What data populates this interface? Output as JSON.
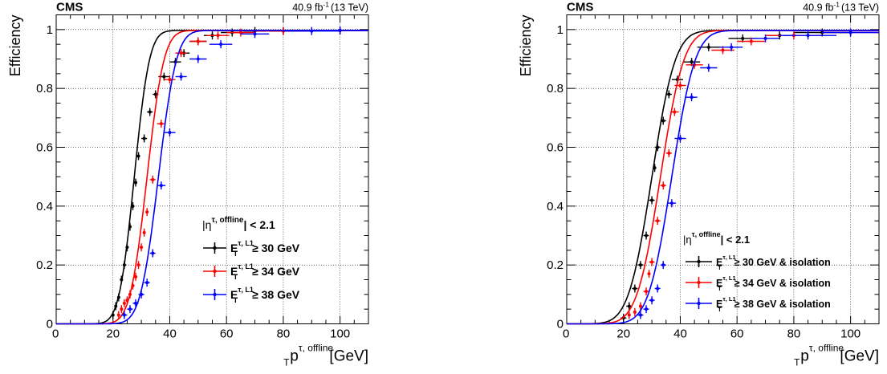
{
  "chart_data": [
    {
      "type": "scatter",
      "experiment": "CMS",
      "lumi_main": "40.9 fb",
      "lumi_exp": "-1",
      "energy": "(13 TeV)",
      "ylabel": "Efficiency",
      "xlabel": {
        "main": "p",
        "sub": "T",
        "sup": "τ, offline",
        "unit": "[GeV]"
      },
      "xlim": [
        0,
        110
      ],
      "ylim": [
        0,
        1.05
      ],
      "xticks": [
        "0",
        "20",
        "40",
        "60",
        "80",
        "100"
      ],
      "yticks": [
        "0",
        "0.2",
        "0.4",
        "0.6",
        "0.8",
        "1"
      ],
      "grid": true,
      "legend": {
        "position": "right-middle",
        "header": {
          "main": "|η",
          "sup": "τ, offline",
          "tail": "| < 2.1"
        },
        "entries": [
          {
            "main": "E",
            "sub": "T",
            "sup": "τ, L1",
            "tail": " ≥ 30 GeV"
          },
          {
            "main": "E",
            "sub": "T",
            "sup": "τ, L1",
            "tail": " ≥ 34 GeV"
          },
          {
            "main": "E",
            "sub": "T",
            "sup": "τ, L1",
            "tail": " ≥ 38 GeV"
          }
        ]
      },
      "series": [
        {
          "color": "#000000",
          "fit": {
            "mu": 27.5,
            "sigma": 4.2
          },
          "points": [
            [
              20,
              0.03
            ],
            [
              21,
              0.06
            ],
            [
              22,
              0.09
            ],
            [
              23,
              0.15
            ],
            [
              24,
              0.2
            ],
            [
              25,
              0.26
            ],
            [
              26,
              0.33
            ],
            [
              27,
              0.4
            ],
            [
              28,
              0.48
            ],
            [
              29,
              0.57
            ],
            [
              31,
              0.63
            ],
            [
              33,
              0.72
            ],
            [
              35,
              0.78
            ],
            [
              38,
              0.84
            ],
            [
              42,
              0.89
            ],
            [
              45,
              0.92
            ],
            [
              50,
              0.96
            ],
            [
              55,
              0.98
            ],
            [
              62,
              0.99
            ],
            [
              70,
              0.995
            ],
            [
              80,
              0.995
            ],
            [
              100,
              0.997
            ]
          ],
          "xerr": [
            0.5,
            0.5,
            0.5,
            0.5,
            0.5,
            0.5,
            0.5,
            0.5,
            0.5,
            0.5,
            1,
            1,
            1,
            2,
            2,
            2,
            3,
            3,
            4,
            4,
            5,
            10
          ]
        },
        {
          "color": "#ff0000",
          "fit": {
            "mu": 32.0,
            "sigma": 4.7
          },
          "points": [
            [
              22,
              0.03
            ],
            [
              23,
              0.05
            ],
            [
              24,
              0.07
            ],
            [
              25,
              0.08
            ],
            [
              26,
              0.1
            ],
            [
              27,
              0.13
            ],
            [
              28,
              0.16
            ],
            [
              29,
              0.2
            ],
            [
              30,
              0.26
            ],
            [
              31,
              0.31
            ],
            [
              32,
              0.38
            ],
            [
              34,
              0.49
            ],
            [
              37,
              0.68
            ],
            [
              40,
              0.83
            ],
            [
              44,
              0.92
            ],
            [
              50,
              0.96
            ],
            [
              57,
              0.98
            ],
            [
              65,
              0.99
            ],
            [
              80,
              0.995
            ],
            [
              100,
              0.997
            ]
          ],
          "xerr": [
            0.5,
            0.5,
            0.5,
            0.5,
            0.5,
            0.5,
            0.5,
            0.5,
            0.5,
            0.5,
            0.5,
            1,
            1.5,
            2,
            2,
            3,
            4,
            5,
            10,
            10
          ]
        },
        {
          "color": "#0000ff",
          "fit": {
            "mu": 36.0,
            "sigma": 5.0
          },
          "points": [
            [
              24,
              0.03
            ],
            [
              26,
              0.05
            ],
            [
              28,
              0.07
            ],
            [
              30,
              0.1
            ],
            [
              32,
              0.14
            ],
            [
              34,
              0.24
            ],
            [
              37,
              0.47
            ],
            [
              40,
              0.65
            ],
            [
              44,
              0.84
            ],
            [
              50,
              0.9
            ],
            [
              58,
              0.95
            ],
            [
              70,
              0.985
            ],
            [
              90,
              0.995
            ],
            [
              100,
              0.997
            ]
          ],
          "xerr": [
            1,
            1,
            1,
            1,
            1,
            1,
            1.5,
            2,
            2,
            3,
            4,
            5,
            10,
            10
          ]
        }
      ]
    },
    {
      "type": "scatter",
      "experiment": "CMS",
      "lumi_main": "40.9 fb",
      "lumi_exp": "-1",
      "energy": "(13 TeV)",
      "ylabel": "Efficiency",
      "xlabel": {
        "main": "p",
        "sub": "T",
        "sup": "τ, offline",
        "unit": "[GeV]"
      },
      "xlim": [
        0,
        110
      ],
      "ylim": [
        0,
        1.05
      ],
      "xticks": [
        "0",
        "20",
        "40",
        "60",
        "80",
        "100"
      ],
      "yticks": [
        "0",
        "0.2",
        "0.4",
        "0.6",
        "0.8",
        "1"
      ],
      "grid": true,
      "legend": {
        "position": "bottom-right",
        "header": {
          "main": "|η",
          "sup": "τ, offline",
          "tail": "| < 2.1"
        },
        "entries": [
          {
            "main": "E",
            "sub": "T",
            "sup": "τ, L1",
            "tail": " ≥ 30 GeV & isolation"
          },
          {
            "main": "E",
            "sub": "T",
            "sup": "τ, L1",
            "tail": " ≥ 34 GeV & isolation"
          },
          {
            "main": "E",
            "sub": "T",
            "sup": "τ, L1",
            "tail": " ≥ 38 GeV & isolation"
          }
        ]
      },
      "series": [
        {
          "color": "#000000",
          "fit": {
            "mu": 30.0,
            "sigma": 6.5
          },
          "points": [
            [
              20,
              0.02
            ],
            [
              22,
              0.06
            ],
            [
              24,
              0.12
            ],
            [
              26,
              0.2
            ],
            [
              28,
              0.3
            ],
            [
              30,
              0.42
            ],
            [
              31,
              0.53
            ],
            [
              32,
              0.6
            ],
            [
              34,
              0.69
            ],
            [
              36,
              0.78
            ],
            [
              39,
              0.83
            ],
            [
              44,
              0.89
            ],
            [
              50,
              0.94
            ],
            [
              62,
              0.97
            ],
            [
              75,
              0.98
            ],
            [
              90,
              0.99
            ]
          ],
          "xerr": [
            1,
            1,
            1,
            1,
            1,
            1,
            0.5,
            1,
            1,
            1,
            2,
            3,
            4,
            5,
            5,
            10
          ]
        },
        {
          "color": "#ff0000",
          "fit": {
            "mu": 33.0,
            "sigma": 6.5
          },
          "points": [
            [
              22,
              0.03
            ],
            [
              24,
              0.04
            ],
            [
              26,
              0.06
            ],
            [
              28,
              0.11
            ],
            [
              29,
              0.17
            ],
            [
              30,
              0.21
            ],
            [
              32,
              0.35
            ],
            [
              34,
              0.47
            ],
            [
              36,
              0.58
            ],
            [
              38,
              0.72
            ],
            [
              40,
              0.81
            ],
            [
              45,
              0.88
            ],
            [
              55,
              0.93
            ],
            [
              65,
              0.96
            ],
            [
              80,
              0.98
            ],
            [
              100,
              0.99
            ]
          ],
          "xerr": [
            0.5,
            0.5,
            0.5,
            1,
            0.5,
            1,
            1,
            1,
            1,
            1.5,
            2,
            3,
            4,
            5,
            10,
            10
          ]
        },
        {
          "color": "#0000ff",
          "fit": {
            "mu": 37.0,
            "sigma": 6.5
          },
          "points": [
            [
              26,
              0.03
            ],
            [
              28,
              0.05
            ],
            [
              30,
              0.08
            ],
            [
              32,
              0.12
            ],
            [
              34,
              0.2
            ],
            [
              37,
              0.41
            ],
            [
              40,
              0.63
            ],
            [
              44,
              0.77
            ],
            [
              50,
              0.87
            ],
            [
              58,
              0.94
            ],
            [
              70,
              0.97
            ],
            [
              85,
              0.98
            ],
            [
              100,
              0.99
            ]
          ],
          "xerr": [
            1,
            1,
            1,
            1,
            1,
            1.5,
            2,
            2,
            3,
            4,
            5,
            10,
            10
          ]
        }
      ]
    }
  ]
}
